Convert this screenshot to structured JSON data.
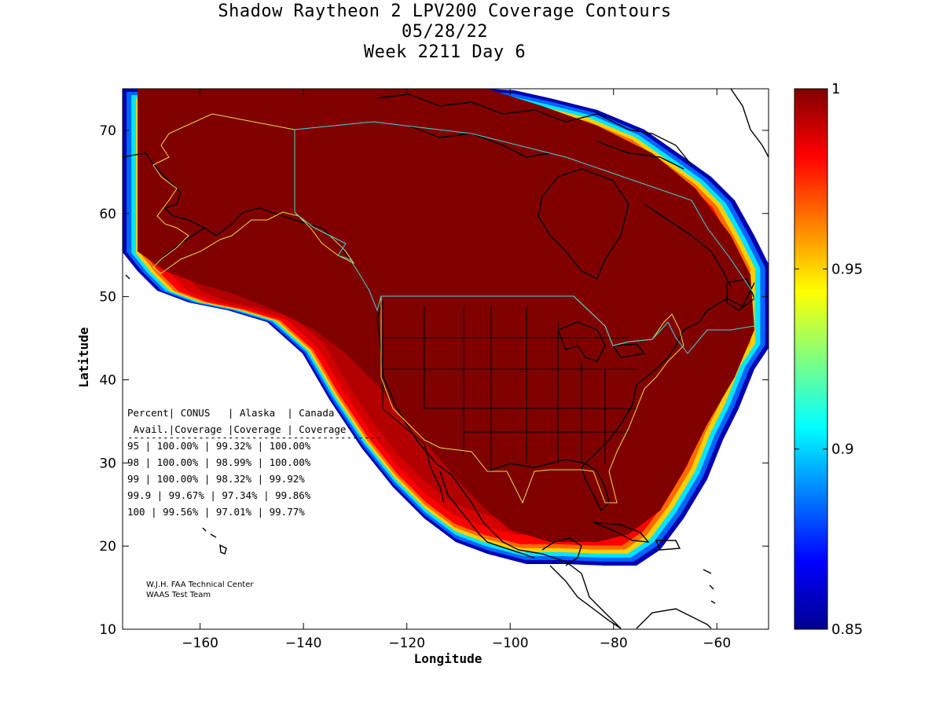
{
  "title": {
    "line1": "Shadow Raytheon 2 LPV200 Coverage Contours",
    "line2": "05/28/22",
    "line3": "Week 2211 Day 6"
  },
  "axes": {
    "xlabel": "Longitude",
    "ylabel": "Latitude",
    "xlim": [
      -175,
      -50
    ],
    "ylim": [
      10,
      75
    ],
    "xticks": [
      -160,
      -140,
      -120,
      -100,
      -80,
      -60
    ],
    "yticks": [
      10,
      20,
      30,
      40,
      50,
      60,
      70
    ],
    "xtick_labels": [
      "−160",
      "−140",
      "−120",
      "−100",
      "−80",
      "−60"
    ],
    "ytick_labels": [
      "10",
      "20",
      "30",
      "40",
      "50",
      "60",
      "70"
    ]
  },
  "colorbar": {
    "min": 0.85,
    "max": 1,
    "ticks": [
      0.85,
      0.9,
      0.95,
      1
    ],
    "tick_labels": [
      "0.85",
      "0.9",
      "0.95",
      "1"
    ],
    "colormap": "jet"
  },
  "table": {
    "header1": [
      "Percent|",
      "CONUS",
      "|",
      "Alaska",
      "|",
      "Canada"
    ],
    "header1_text": "Percent| CONUS   | Alaska  | Canada",
    "header2_text": " Avail.|Coverage |Coverage | Coverage",
    "separator": "-------------------------------------------",
    "rows": [
      {
        "percent": "95",
        "conus": "100.00%",
        "alaska": "99.32%",
        "canada": "100.00%"
      },
      {
        "percent": "98",
        "conus": "100.00%",
        "alaska": "98.99%",
        "canada": "100.00%"
      },
      {
        "percent": "99",
        "conus": "100.00%",
        "alaska": "98.32%",
        "canada": "99.92%"
      },
      {
        "percent": "99.9",
        "conus": "99.67%",
        "alaska": "97.34%",
        "canada": "99.86%"
      },
      {
        "percent": "100",
        "conus": "99.56%",
        "alaska": "97.01%",
        "canada": "99.77%"
      }
    ]
  },
  "credit": {
    "line1": "W.J.H. FAA Technical Center",
    "line2": "WAAS Test Team"
  },
  "colors": {
    "core": "#800000",
    "coverage_bands": [
      "#b20000",
      "#d40000",
      "#ff0000",
      "#ff6a00",
      "#ffd000",
      "#00e4ff",
      "#0064ff",
      "#0000b0"
    ],
    "alaska_outline": "#e8e050",
    "conus_outline": "#e8e050",
    "canada_outline": "#40d8e0"
  },
  "chart_data": {
    "type": "heatmap",
    "title": "Shadow Raytheon 2 LPV200 Coverage Contours",
    "xlabel": "Longitude",
    "ylabel": "Latitude",
    "xlim": [
      -175,
      -50
    ],
    "ylim": [
      10,
      75
    ],
    "value_range": [
      0.85,
      1
    ],
    "coverage_table": [
      {
        "percent_avail": "95",
        "conus": "100.00%",
        "alaska": "99.32%",
        "canada": "100.00%"
      },
      {
        "percent_avail": "98",
        "conus": "100.00%",
        "alaska": "98.99%",
        "canada": "100.00%"
      },
      {
        "percent_avail": "99",
        "conus": "100.00%",
        "alaska": "98.32%",
        "canada": "99.92%"
      },
      {
        "percent_avail": "99.9",
        "conus": "99.67%",
        "alaska": "97.34%",
        "canada": "99.86%"
      },
      {
        "percent_avail": "100",
        "conus": "99.56%",
        "alaska": "97.01%",
        "canada": "99.77%"
      }
    ]
  }
}
